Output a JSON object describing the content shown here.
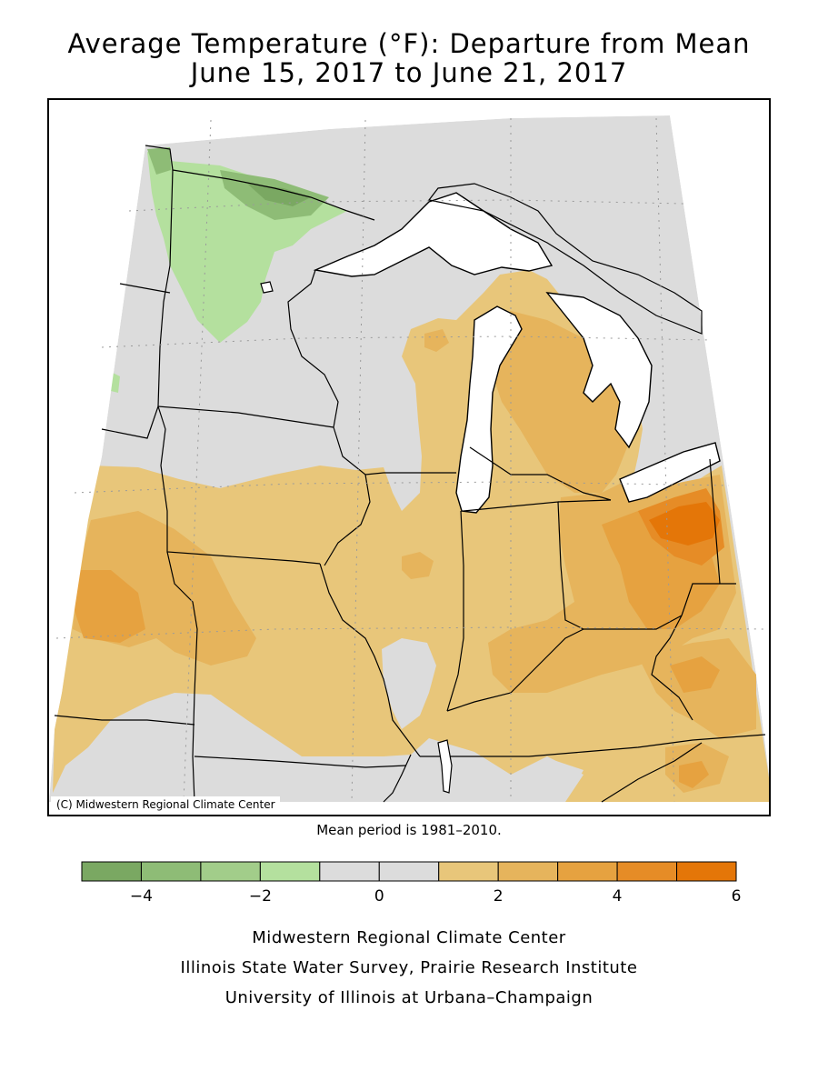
{
  "title": {
    "line1": "Average Temperature (°F): Departure from Mean",
    "line2": "June 15, 2017 to June 21, 2017"
  },
  "map": {
    "copyright": "(C) Midwestern Regional Climate Center",
    "colors": {
      "background": "#ffffff",
      "water": "#ffffff",
      "neutral": "#dcdcdc"
    }
  },
  "mean_note": "Mean period is 1981–2010.",
  "legend": {
    "bins": [
      {
        "from": -5,
        "to": -4,
        "color": "#7aa862"
      },
      {
        "from": -4,
        "to": -3,
        "color": "#8ebc76"
      },
      {
        "from": -3,
        "to": -2,
        "color": "#a2cd8a"
      },
      {
        "from": -2,
        "to": -1,
        "color": "#b4e09e"
      },
      {
        "from": -1,
        "to": 0,
        "color": "#dcdcdc"
      },
      {
        "from": 0,
        "to": 1,
        "color": "#dcdcdc"
      },
      {
        "from": 1,
        "to": 2,
        "color": "#e8c67a"
      },
      {
        "from": 2,
        "to": 3,
        "color": "#e6b45c"
      },
      {
        "from": 3,
        "to": 4,
        "color": "#e6a240"
      },
      {
        "from": 4,
        "to": 5,
        "color": "#e68c26"
      },
      {
        "from": 5,
        "to": 6,
        "color": "#e47608"
      }
    ],
    "tick_values": [
      -4,
      -2,
      0,
      2,
      4,
      6
    ],
    "tick_labels": [
      "−4",
      "−2",
      "0",
      "2",
      "4",
      "6"
    ]
  },
  "credits": [
    "Midwestern Regional Climate Center",
    "Illinois State Water Survey, Prairie Research Institute",
    "University of Illinois at Urbana–Champaign"
  ]
}
